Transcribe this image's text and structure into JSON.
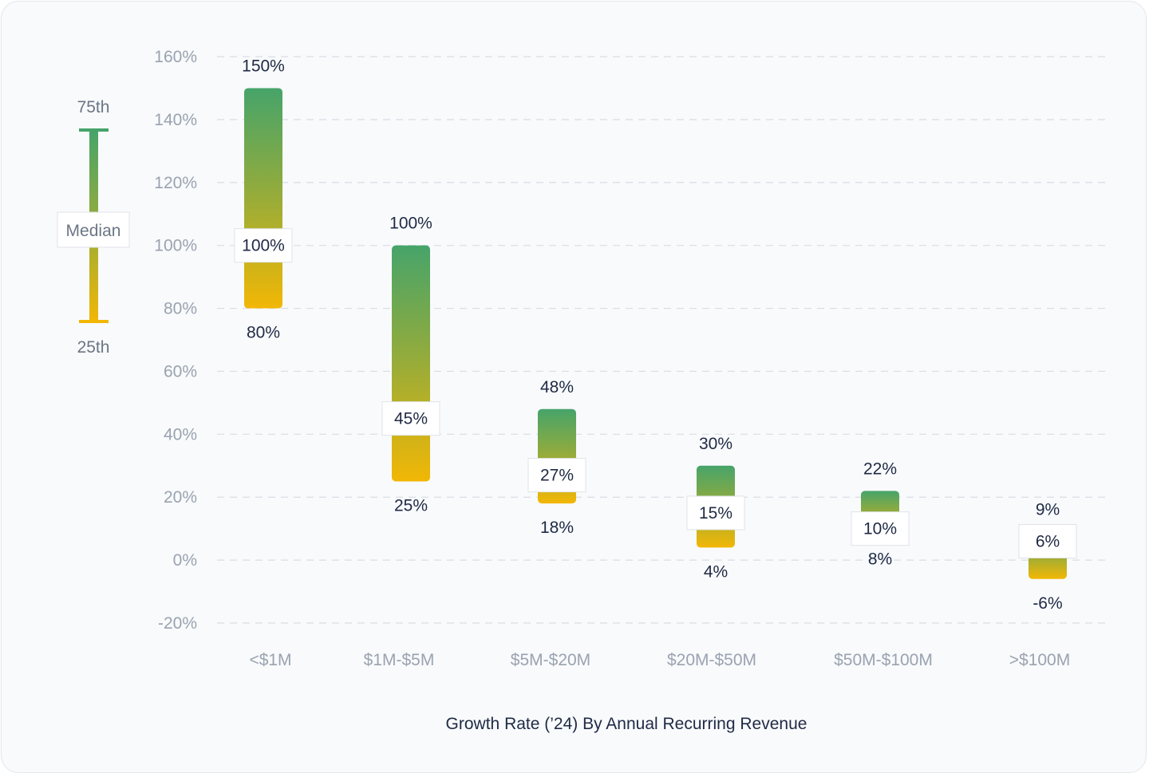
{
  "chart_data": {
    "type": "bar",
    "title": "",
    "xlabel": "Growth Rate (’24) By Annual Recurring Revenue",
    "ylabel": "",
    "ylim": [
      -20,
      160
    ],
    "yticks": [
      "160%",
      "140%",
      "120%",
      "100%",
      "80%",
      "60%",
      "40%",
      "20%",
      "0%",
      "-20%"
    ],
    "ytick_values": [
      160,
      140,
      120,
      100,
      80,
      60,
      40,
      20,
      0,
      -20
    ],
    "grid": true,
    "categories": [
      "<$1M",
      "$1M-$5M",
      "$5M-$20M",
      "$20M-$50M",
      "$50M-$100M",
      ">$100M"
    ],
    "series": [
      {
        "name": "75th",
        "values": [
          150,
          100,
          48,
          30,
          22,
          9
        ],
        "labels": [
          "150%",
          "100%",
          "48%",
          "30%",
          "22%",
          "9%"
        ]
      },
      {
        "name": "Median",
        "values": [
          100,
          45,
          27,
          15,
          10,
          6
        ],
        "labels": [
          "100%",
          "45%",
          "27%",
          "15%",
          "10%",
          "6%"
        ]
      },
      {
        "name": "25th",
        "values": [
          80,
          25,
          18,
          4,
          8,
          -6
        ],
        "labels": [
          "80%",
          "25%",
          "18%",
          "4%",
          "8%",
          "-6%"
        ]
      }
    ]
  },
  "legend": {
    "top_label": "75th",
    "middle_label": "Median",
    "bottom_label": "25th"
  },
  "colors": {
    "top": "#46a46a",
    "middle": "#b5b030",
    "bottom": "#f2b705",
    "grid": "#d9dde3"
  }
}
